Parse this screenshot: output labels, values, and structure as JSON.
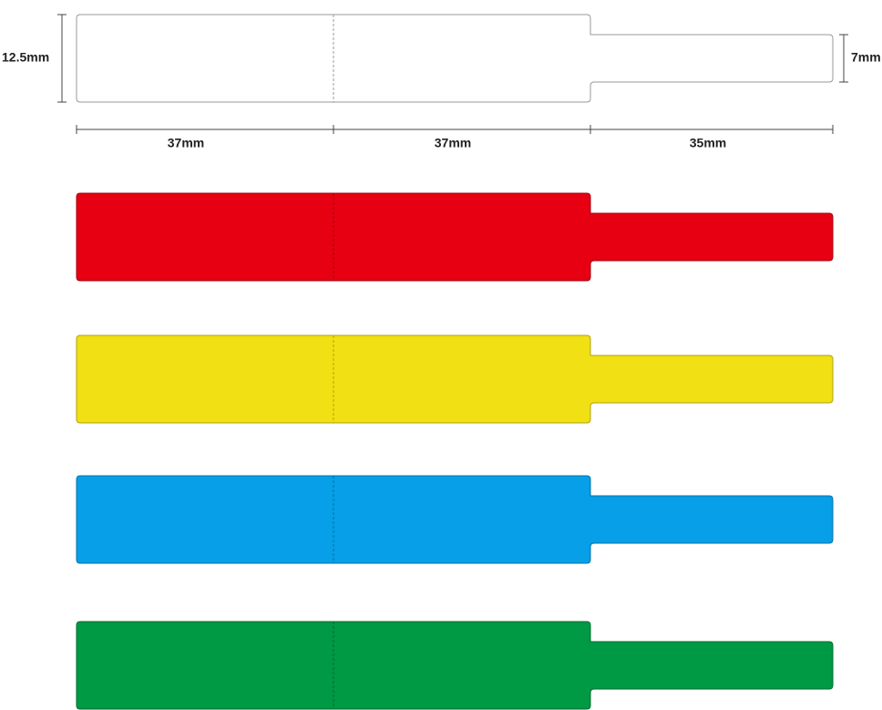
{
  "dimensions": {
    "height": "12.5mm",
    "tail_height": "7mm",
    "widths": [
      "37mm",
      "37mm",
      "35mm"
    ]
  }
}
